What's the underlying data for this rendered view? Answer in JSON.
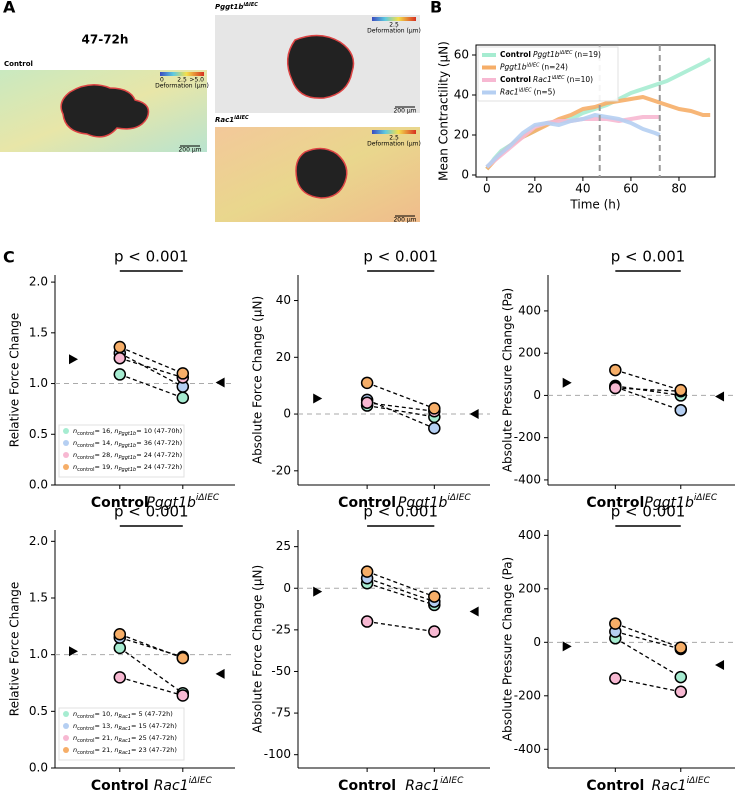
{
  "panel_labels": {
    "a": "A",
    "b": "B",
    "c": "C"
  },
  "panel_a": {
    "title": "47-72h",
    "colorbar_ticks": [
      "0",
      "2.5",
      ">5.0"
    ],
    "colorbar_label": "Deformation (µm)",
    "scale_bar": "200 µm",
    "images": [
      {
        "label": "Control"
      },
      {
        "label": "Pggt1b",
        "sup": "iΔIEC"
      },
      {
        "label": "Rac1",
        "sup": "iΔIEC"
      }
    ]
  },
  "chart_data": [
    {
      "type": "line",
      "xlabel": "Time (h)",
      "ylabel": "Mean Contractility (μN)",
      "xlim": [
        -4.5,
        95
      ],
      "ylim": [
        -1,
        65
      ],
      "xticks": [
        0,
        20,
        40,
        60,
        80
      ],
      "yticks": [
        0,
        20,
        40,
        60
      ],
      "vlines": [
        47,
        72
      ],
      "legend": "upper left",
      "series": [
        {
          "prefix": "Control",
          "name": "Pggt1b",
          "sup": "iΔIEC",
          "n_label": "(n=19)",
          "color": "#a6ecd1",
          "x": [
            0,
            3,
            6,
            10,
            15,
            20,
            25,
            30,
            35,
            40,
            45,
            50,
            55,
            60,
            65,
            70,
            75,
            80,
            85,
            90,
            93
          ],
          "values": [
            3,
            8,
            12,
            15,
            19,
            22,
            26,
            27,
            28,
            31,
            33,
            35,
            38,
            41,
            43,
            45,
            47,
            50,
            53,
            56,
            58
          ]
        },
        {
          "name": "Pggt1b",
          "sup": "iΔIEC",
          "n_label": "(n=24)",
          "color": "#f6ae68",
          "x": [
            0,
            3,
            6,
            10,
            15,
            20,
            25,
            30,
            35,
            40,
            45,
            50,
            55,
            60,
            65,
            70,
            75,
            80,
            85,
            90,
            93
          ],
          "values": [
            3,
            7,
            11,
            15,
            19,
            22,
            25,
            28,
            30,
            33,
            34,
            36,
            37,
            38,
            39,
            37,
            35,
            33,
            32,
            30,
            30
          ]
        },
        {
          "prefix": "Control",
          "name": "Rac1",
          "sup": "iΔIEC",
          "n_label": "(n=10)",
          "color": "#f7b8d2",
          "x": [
            0,
            5,
            10,
            15,
            20,
            25,
            30,
            35,
            40,
            45,
            50,
            55,
            60,
            65,
            70,
            72
          ],
          "values": [
            4,
            9,
            14,
            19,
            24,
            26,
            27,
            27,
            28,
            28,
            28,
            27,
            28,
            29,
            29,
            29
          ]
        },
        {
          "name": "Rac1",
          "sup": "iΔIEC",
          "n_label": "(n=5)",
          "color": "#b5cff2",
          "x": [
            0,
            5,
            10,
            15,
            20,
            25,
            30,
            35,
            40,
            45,
            50,
            55,
            60,
            65,
            70,
            72
          ],
          "values": [
            4,
            10,
            15,
            21,
            25,
            26,
            25,
            27,
            28,
            30,
            29,
            28,
            26,
            23,
            21,
            20
          ]
        }
      ]
    },
    {
      "type": "paired",
      "ylabel": "Relative Force Change",
      "ylim": [
        0,
        2.07
      ],
      "yticks": [
        {
          "value": 0,
          "label": "0.0"
        },
        0.5,
        {
          "value": 1,
          "label": "1.0"
        },
        1.5,
        {
          "value": 2,
          "label": "2.0"
        }
      ],
      "baseline": 1,
      "pvalue": "p < 0.001",
      "categories": [
        {
          "label": "Control"
        },
        {
          "label": "Pggt1b",
          "sup": "iΔIEC"
        }
      ],
      "means": [
        1.24,
        1.01
      ],
      "legend": {
        "symbol": "n",
        "subs": [
          "control",
          "Pggt1b"
        ]
      },
      "series": [
        {
          "color": "#a6ecd1",
          "values": [
            1.09,
            0.86
          ],
          "n_control": "= 16, ",
          "n_treated": "= 10  (47-70h)"
        },
        {
          "color": "#b5cff2",
          "values": [
            1.3,
            0.97
          ],
          "n_control": "= 14, ",
          "n_treated": "= 36  (47-72h)"
        },
        {
          "color": "#f7b8d2",
          "values": [
            1.25,
            1.06
          ],
          "n_control": "= 28, ",
          "n_treated": "= 24  (47-72h)"
        },
        {
          "color": "#f6ae68",
          "values": [
            1.36,
            1.1
          ],
          "n_control": "= 19, ",
          "n_treated": "= 24  (47-72h)"
        }
      ]
    },
    {
      "type": "paired",
      "ylabel": "Absolute Force Change (μN)",
      "ylim": [
        -25,
        49
      ],
      "yticks": [
        -20,
        0,
        20,
        40
      ],
      "baseline": 0,
      "pvalue": "p < 0.001",
      "categories": [
        {
          "label": "Control"
        },
        {
          "label": "Pggt1b",
          "sup": "iΔIEC"
        }
      ],
      "means": [
        5.5,
        0
      ],
      "series": [
        {
          "color": "#a6ecd1",
          "values": [
            3,
            -1
          ]
        },
        {
          "color": "#b5cff2",
          "values": [
            5,
            -5
          ]
        },
        {
          "color": "#f7b8d2",
          "values": [
            4,
            1
          ]
        },
        {
          "color": "#f6ae68",
          "values": [
            11,
            2
          ]
        }
      ]
    },
    {
      "type": "paired",
      "ylabel": "Absolute Pressure Change (Pa)",
      "ylim": [
        -424,
        570
      ],
      "yticks": [
        -400,
        -200,
        0,
        200,
        400
      ],
      "baseline": 0,
      "pvalue": "p < 0.001",
      "categories": [
        {
          "label": "Control"
        },
        {
          "label": "Pggt1b",
          "sup": "iΔIEC"
        }
      ],
      "means": [
        60,
        -5
      ],
      "series": [
        {
          "color": "#a6ecd1",
          "values": [
            45,
            0
          ]
        },
        {
          "color": "#b5cff2",
          "values": [
            40,
            -70
          ]
        },
        {
          "color": "#f7b8d2",
          "values": [
            35,
            20
          ]
        },
        {
          "color": "#f6ae68",
          "values": [
            120,
            25
          ]
        }
      ]
    },
    {
      "type": "paired",
      "ylabel": "Relative Force Change",
      "ylim": [
        0,
        2.1
      ],
      "yticks": [
        {
          "value": 0,
          "label": "0.0"
        },
        0.5,
        {
          "value": 1,
          "label": "1.0"
        },
        1.5,
        {
          "value": 2,
          "label": "2.0"
        }
      ],
      "baseline": 1,
      "pvalue": "p < 0.001",
      "categories": [
        {
          "label": "Control"
        },
        {
          "label": "Rac1",
          "sup": "iΔIEC"
        }
      ],
      "means": [
        1.03,
        0.83
      ],
      "legend": {
        "symbol": "n",
        "subs": [
          "control",
          "Rac1"
        ]
      },
      "series": [
        {
          "color": "#a6ecd1",
          "values": [
            1.06,
            0.66
          ],
          "n_control": "= 10, ",
          "n_treated": "= 5  (47-72h)"
        },
        {
          "color": "#b5cff2",
          "values": [
            1.15,
            0.98
          ],
          "n_control": "= 13, ",
          "n_treated": "= 15  (47-72h)"
        },
        {
          "color": "#f7b8d2",
          "values": [
            0.8,
            0.64
          ],
          "n_control": "= 21, ",
          "n_treated": "= 25  (47-72h)"
        },
        {
          "color": "#f6ae68",
          "values": [
            1.18,
            0.97
          ],
          "n_control": "= 21, ",
          "n_treated": "= 23  (47-72h)"
        }
      ]
    },
    {
      "type": "paired",
      "ylabel": "Absolute Force Change (μN)",
      "ylim": [
        -108,
        35
      ],
      "yticks": [
        -100,
        -75,
        -50,
        -25,
        0,
        25
      ],
      "baseline": 0,
      "pvalue": "p < 0.001",
      "categories": [
        {
          "label": "Control"
        },
        {
          "label": "Rac1",
          "sup": "iΔIEC"
        }
      ],
      "means": [
        -2,
        -14
      ],
      "series": [
        {
          "color": "#a6ecd1",
          "values": [
            3,
            -10
          ]
        },
        {
          "color": "#b5cff2",
          "values": [
            6,
            -8
          ]
        },
        {
          "color": "#f7b8d2",
          "values": [
            -20,
            -26
          ]
        },
        {
          "color": "#f6ae68",
          "values": [
            10,
            -5
          ]
        }
      ]
    },
    {
      "type": "paired",
      "ylabel": "Absolute Pressure Change (Pa)",
      "ylim": [
        -470,
        420
      ],
      "yticks": [
        -400,
        -200,
        0,
        200,
        400
      ],
      "baseline": 0,
      "pvalue": "p < 0.001",
      "categories": [
        {
          "label": "Control"
        },
        {
          "label": "Rac1",
          "sup": "iΔIEC"
        }
      ],
      "means": [
        -15,
        -85
      ],
      "series": [
        {
          "color": "#a6ecd1",
          "values": [
            15,
            -130
          ]
        },
        {
          "color": "#b5cff2",
          "values": [
            40,
            -25
          ]
        },
        {
          "color": "#f7b8d2",
          "values": [
            -135,
            -185
          ]
        },
        {
          "color": "#f6ae68",
          "values": [
            70,
            -20
          ]
        }
      ]
    }
  ]
}
